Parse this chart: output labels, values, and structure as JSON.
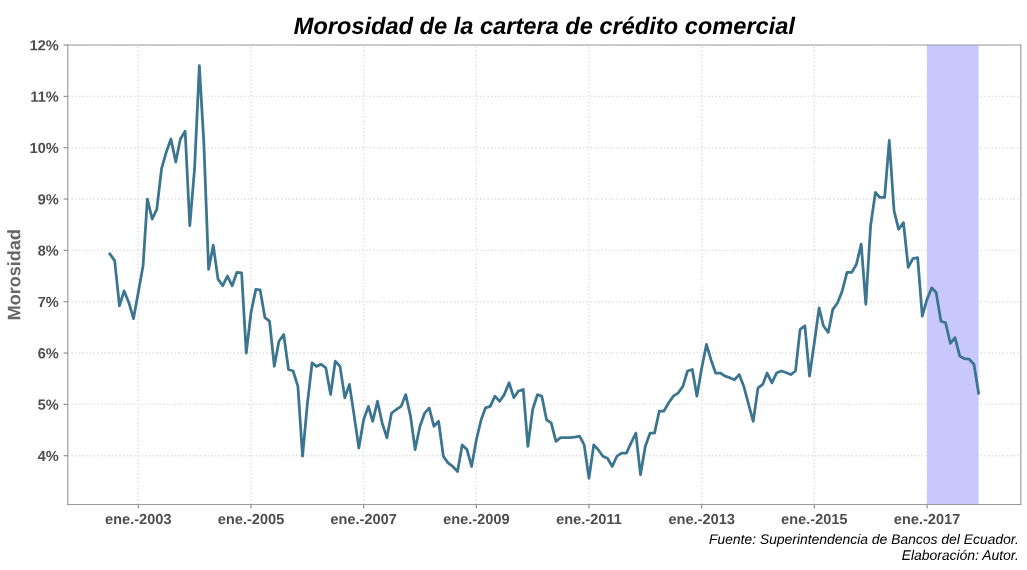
{
  "chart_data": {
    "type": "line",
    "title": "Morosidad de la cartera de crédito comercial",
    "ylabel": "Morosidad",
    "x": [
      "2002-07",
      "2002-08",
      "2002-09",
      "2002-10",
      "2002-11",
      "2002-12",
      "2003-01",
      "2003-02",
      "2003-03",
      "2003-04",
      "2003-05",
      "2003-06",
      "2003-07",
      "2003-08",
      "2003-09",
      "2003-10",
      "2003-11",
      "2003-12",
      "2004-01",
      "2004-02",
      "2004-03",
      "2004-04",
      "2004-05",
      "2004-06",
      "2004-07",
      "2004-08",
      "2004-09",
      "2004-10",
      "2004-11",
      "2004-12",
      "2005-01",
      "2005-02",
      "2005-03",
      "2005-04",
      "2005-05",
      "2005-06",
      "2005-07",
      "2005-08",
      "2005-09",
      "2005-10",
      "2005-11",
      "2005-12",
      "2006-01",
      "2006-02",
      "2006-03",
      "2006-04",
      "2006-05",
      "2006-06",
      "2006-07",
      "2006-08",
      "2006-09",
      "2006-10",
      "2006-11",
      "2006-12",
      "2007-01",
      "2007-02",
      "2007-03",
      "2007-04",
      "2007-05",
      "2007-06",
      "2007-07",
      "2007-08",
      "2007-09",
      "2007-10",
      "2007-11",
      "2007-12",
      "2008-01",
      "2008-02",
      "2008-03",
      "2008-04",
      "2008-05",
      "2008-06",
      "2008-07",
      "2008-08",
      "2008-09",
      "2008-10",
      "2008-11",
      "2008-12",
      "2009-01",
      "2009-02",
      "2009-03",
      "2009-04",
      "2009-05",
      "2009-06",
      "2009-07",
      "2009-08",
      "2009-09",
      "2009-10",
      "2009-11",
      "2009-12",
      "2010-01",
      "2010-02",
      "2010-03",
      "2010-04",
      "2010-05",
      "2010-06",
      "2010-07",
      "2010-08",
      "2010-09",
      "2010-10",
      "2010-11",
      "2010-12",
      "2011-01",
      "2011-02",
      "2011-03",
      "2011-04",
      "2011-05",
      "2011-06",
      "2011-07",
      "2011-08",
      "2011-09",
      "2011-10",
      "2011-11",
      "2011-12",
      "2012-01",
      "2012-02",
      "2012-03",
      "2012-04",
      "2012-05",
      "2012-06",
      "2012-07",
      "2012-08",
      "2012-09",
      "2012-10",
      "2012-11",
      "2012-12",
      "2013-01",
      "2013-02",
      "2013-03",
      "2013-04",
      "2013-05",
      "2013-06",
      "2013-07",
      "2013-08",
      "2013-09",
      "2013-10",
      "2013-11",
      "2013-12",
      "2014-01",
      "2014-02",
      "2014-03",
      "2014-04",
      "2014-05",
      "2014-06",
      "2014-07",
      "2014-08",
      "2014-09",
      "2014-10",
      "2014-11",
      "2014-12",
      "2015-01",
      "2015-02",
      "2015-03",
      "2015-04",
      "2015-05",
      "2015-06",
      "2015-07",
      "2015-08",
      "2015-09",
      "2015-10",
      "2015-11",
      "2015-12",
      "2016-01",
      "2016-02",
      "2016-03",
      "2016-04",
      "2016-05",
      "2016-06",
      "2016-07",
      "2016-08",
      "2016-09",
      "2016-10",
      "2016-11",
      "2016-12",
      "2017-01",
      "2017-02",
      "2017-03",
      "2017-04",
      "2017-05",
      "2017-06",
      "2017-07",
      "2017-08",
      "2017-09",
      "2017-10",
      "2017-11",
      "2017-12"
    ],
    "series": [
      {
        "color": "#3b7590",
        "values": [
          7.93,
          7.8,
          6.92,
          7.21,
          6.98,
          6.67,
          7.18,
          7.7,
          9.0,
          8.61,
          8.8,
          9.59,
          9.91,
          10.17,
          9.72,
          10.17,
          10.32,
          8.48,
          9.59,
          11.6,
          10.1,
          7.63,
          8.1,
          7.44,
          7.31,
          7.5,
          7.31,
          7.57,
          7.56,
          6.0,
          6.79,
          7.24,
          7.23,
          6.69,
          6.62,
          5.74,
          6.23,
          6.36,
          5.68,
          5.65,
          5.35,
          3.99,
          5.0,
          5.81,
          5.74,
          5.78,
          5.71,
          5.19,
          5.84,
          5.74,
          5.13,
          5.39,
          4.77,
          4.15,
          4.7,
          4.96,
          4.67,
          5.06,
          4.64,
          4.35,
          4.83,
          4.9,
          4.96,
          5.19,
          4.77,
          4.12,
          4.57,
          4.83,
          4.93,
          4.57,
          4.67,
          3.99,
          3.86,
          3.79,
          3.69,
          4.21,
          4.12,
          3.79,
          4.31,
          4.7,
          4.93,
          4.96,
          5.16,
          5.06,
          5.19,
          5.42,
          5.13,
          5.26,
          5.29,
          4.18,
          4.9,
          5.19,
          5.16,
          4.7,
          4.64,
          4.28,
          4.35,
          4.35,
          4.35,
          4.36,
          4.38,
          4.21,
          3.56,
          4.21,
          4.12,
          3.99,
          3.95,
          3.79,
          3.99,
          4.05,
          4.05,
          4.25,
          4.44,
          3.63,
          4.18,
          4.44,
          4.44,
          4.87,
          4.87,
          5.03,
          5.16,
          5.22,
          5.35,
          5.65,
          5.68,
          5.16,
          5.71,
          6.17,
          5.88,
          5.61,
          5.61,
          5.55,
          5.52,
          5.48,
          5.58,
          5.35,
          5.0,
          4.67,
          5.32,
          5.39,
          5.61,
          5.42,
          5.61,
          5.65,
          5.62,
          5.58,
          5.65,
          6.46,
          6.53,
          5.55,
          6.2,
          6.88,
          6.53,
          6.4,
          6.85,
          6.98,
          7.21,
          7.57,
          7.57,
          7.73,
          8.12,
          6.95,
          8.48,
          9.13,
          9.03,
          9.03,
          10.14,
          8.77,
          8.41,
          8.54,
          7.67,
          7.84,
          7.86,
          6.72,
          7.05,
          7.27,
          7.18,
          6.62,
          6.59,
          6.19,
          6.3,
          5.94,
          5.89,
          5.88,
          5.78,
          5.22
        ]
      }
    ],
    "xlim": [
      "2001-10",
      "2018-09"
    ],
    "xticks": [
      {
        "value": "2003-01",
        "label": "ene.-2003"
      },
      {
        "value": "2005-01",
        "label": "ene.-2005"
      },
      {
        "value": "2007-01",
        "label": "ene.-2007"
      },
      {
        "value": "2009-01",
        "label": "ene.-2009"
      },
      {
        "value": "2011-01",
        "label": "ene.-2011"
      },
      {
        "value": "2013-01",
        "label": "ene.-2013"
      },
      {
        "value": "2015-01",
        "label": "ene.-2015"
      },
      {
        "value": "2017-01",
        "label": "ene.-2017"
      }
    ],
    "ylim": [
      3.05,
      12.0
    ],
    "yticks": [
      {
        "value": 4,
        "label": "4%"
      },
      {
        "value": 5,
        "label": "5%"
      },
      {
        "value": 6,
        "label": "6%"
      },
      {
        "value": 7,
        "label": "7%"
      },
      {
        "value": 8,
        "label": "8%"
      },
      {
        "value": 9,
        "label": "9%"
      },
      {
        "value": 10,
        "label": "10%"
      },
      {
        "value": 11,
        "label": "11%"
      },
      {
        "value": 12,
        "label": "12%"
      }
    ],
    "bands": [
      {
        "axis": "x",
        "from": "2017-01",
        "to": "2017-12",
        "color": "#c8c8ff"
      }
    ],
    "grid": true,
    "line_style": "solid",
    "annotations": [
      "Fuente: Superintendencia de Bancos del Ecuador.",
      "Elaboración: Autor."
    ]
  }
}
